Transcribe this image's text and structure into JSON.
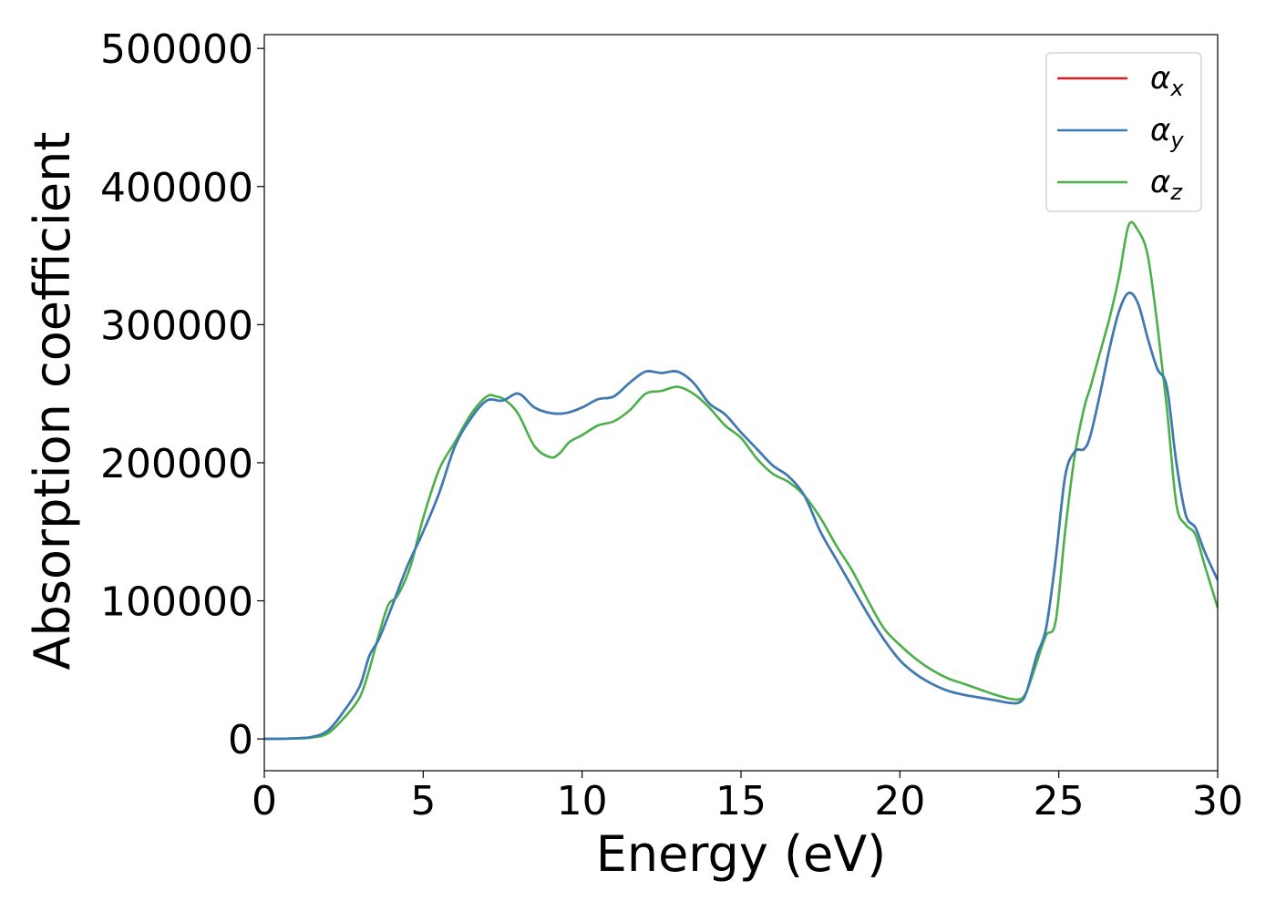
{
  "chart_data": {
    "type": "line",
    "title": "",
    "xlabel": "Energy (eV)",
    "ylabel": "Absorption coefficient",
    "xlim": [
      0,
      30
    ],
    "ylim": [
      -23000,
      510000
    ],
    "xticks": [
      0,
      5,
      10,
      15,
      20,
      25,
      30
    ],
    "xtick_labels": [
      "0",
      "5",
      "10",
      "15",
      "20",
      "25",
      "30"
    ],
    "yticks": [
      0,
      100000,
      200000,
      300000,
      400000,
      500000
    ],
    "ytick_labels": [
      "0",
      "100000",
      "200000",
      "300000",
      "400000",
      "500000"
    ],
    "grid": false,
    "legend": {
      "position": "top-right"
    },
    "series": [
      {
        "name": "α",
        "subscript": "x",
        "color": "#e41a1c",
        "x": [
          0,
          1,
          1.5,
          2,
          2.5,
          3,
          3.3,
          3.6,
          4,
          4.5,
          5,
          5.5,
          6,
          6.5,
          7,
          7.5,
          8,
          8.5,
          9,
          9.5,
          10,
          10.5,
          11,
          11.5,
          12,
          12.5,
          13,
          13.5,
          14,
          14.5,
          15,
          15.5,
          16,
          16.5,
          17,
          17.5,
          18,
          18.5,
          19,
          19.5,
          20,
          20.5,
          21,
          21.5,
          22,
          22.5,
          23,
          23.5,
          23.8,
          24,
          24.3,
          24.6,
          24.9,
          25.2,
          25.5,
          25.8,
          26,
          26.3,
          26.6,
          26.9,
          27.2,
          27.5,
          27.8,
          28.1,
          28.4,
          28.7,
          29,
          29.3,
          29.6,
          30
        ],
        "y": [
          0,
          500,
          1500,
          6000,
          20000,
          38000,
          60000,
          72000,
          95000,
          125000,
          150000,
          178000,
          212000,
          232000,
          245000,
          245000,
          250000,
          240000,
          236000,
          236000,
          240000,
          246000,
          248000,
          258000,
          266000,
          265000,
          266000,
          258000,
          243000,
          235000,
          222000,
          210000,
          198000,
          190000,
          176000,
          150000,
          130000,
          110000,
          90000,
          72000,
          57000,
          47000,
          40000,
          35000,
          32000,
          30000,
          28000,
          26000,
          27000,
          35000,
          60000,
          80000,
          130000,
          190000,
          208000,
          210000,
          220000,
          250000,
          283000,
          310000,
          323000,
          315000,
          290000,
          268000,
          255000,
          200000,
          162000,
          153000,
          135000,
          115000
        ]
      },
      {
        "name": "α",
        "subscript": "y",
        "color": "#377eb8",
        "x": [
          0,
          1,
          1.5,
          2,
          2.5,
          3,
          3.3,
          3.6,
          4,
          4.5,
          5,
          5.5,
          6,
          6.5,
          7,
          7.5,
          8,
          8.5,
          9,
          9.5,
          10,
          10.5,
          11,
          11.5,
          12,
          12.5,
          13,
          13.5,
          14,
          14.5,
          15,
          15.5,
          16,
          16.5,
          17,
          17.5,
          18,
          18.5,
          19,
          19.5,
          20,
          20.5,
          21,
          21.5,
          22,
          22.5,
          23,
          23.5,
          23.8,
          24,
          24.3,
          24.6,
          24.9,
          25.2,
          25.5,
          25.8,
          26,
          26.3,
          26.6,
          26.9,
          27.2,
          27.5,
          27.8,
          28.1,
          28.4,
          28.7,
          29,
          29.3,
          29.6,
          30
        ],
        "y": [
          0,
          500,
          1500,
          6000,
          20000,
          38000,
          60000,
          72000,
          95000,
          125000,
          150000,
          178000,
          212000,
          232000,
          245000,
          245000,
          250000,
          240000,
          236000,
          236000,
          240000,
          246000,
          248000,
          258000,
          266000,
          265000,
          266000,
          258000,
          243000,
          235000,
          222000,
          210000,
          198000,
          190000,
          176000,
          150000,
          130000,
          110000,
          90000,
          72000,
          57000,
          47000,
          40000,
          35000,
          32000,
          30000,
          28000,
          26000,
          27000,
          35000,
          60000,
          80000,
          130000,
          190000,
          208000,
          210000,
          220000,
          250000,
          283000,
          310000,
          323000,
          315000,
          290000,
          268000,
          255000,
          200000,
          162000,
          153000,
          135000,
          115000
        ]
      },
      {
        "name": "α",
        "subscript": "z",
        "color": "#4daf4a",
        "x": [
          0,
          1,
          1.5,
          2,
          2.5,
          3,
          3.3,
          3.6,
          3.9,
          4.2,
          4.6,
          5,
          5.5,
          6,
          6.5,
          7,
          7.3,
          7.6,
          8,
          8.5,
          9,
          9.3,
          9.6,
          10,
          10.5,
          11,
          11.5,
          12,
          12.5,
          13,
          13.5,
          14,
          14.5,
          15,
          15.5,
          16,
          16.5,
          17,
          17.5,
          18,
          18.5,
          19,
          19.5,
          20,
          20.5,
          21,
          21.5,
          22,
          22.5,
          23,
          23.5,
          23.8,
          24,
          24.3,
          24.6,
          24.9,
          25.2,
          25.5,
          25.8,
          26,
          26.3,
          26.6,
          26.9,
          27.2,
          27.5,
          27.8,
          28.1,
          28.4,
          28.7,
          29,
          29.3,
          29.6,
          30
        ],
        "y": [
          0,
          300,
          1000,
          4000,
          15000,
          30000,
          50000,
          75000,
          97000,
          104000,
          125000,
          160000,
          195000,
          215000,
          235000,
          248000,
          248000,
          245000,
          235000,
          212000,
          204000,
          207000,
          215000,
          220000,
          227000,
          230000,
          238000,
          250000,
          252000,
          255000,
          250000,
          240000,
          227000,
          218000,
          203000,
          192000,
          186000,
          176000,
          160000,
          140000,
          122000,
          100000,
          80000,
          68000,
          58000,
          50000,
          44000,
          40000,
          36000,
          32000,
          29000,
          29000,
          35000,
          55000,
          75000,
          85000,
          150000,
          205000,
          240000,
          255000,
          280000,
          305000,
          335000,
          372000,
          368000,
          350000,
          300000,
          240000,
          170000,
          155000,
          148000,
          125000,
          95000
        ]
      }
    ]
  }
}
